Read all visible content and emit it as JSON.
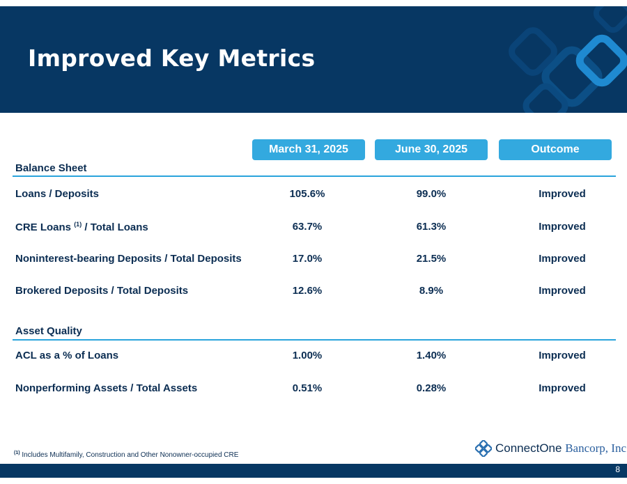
{
  "header": {
    "title": "Improved Key Metrics"
  },
  "columns": [
    "March 31, 2025",
    "June 30, 2025",
    "Outcome"
  ],
  "sections": [
    {
      "label": "Balance Sheet",
      "rows": [
        {
          "metric": "Loans / Deposits",
          "mar": "105.6%",
          "jun": "99.0%",
          "outcome": "Improved"
        },
        {
          "metric_pre": "CRE Loans ",
          "metric_sup": "(1)",
          "metric_post": " / Total Loans",
          "mar": "63.7%",
          "jun": "61.3%",
          "outcome": "Improved"
        },
        {
          "metric": "Noninterest-bearing Deposits / Total Deposits",
          "mar": "17.0%",
          "jun": "21.5%",
          "outcome": "Improved"
        },
        {
          "metric": "Brokered Deposits / Total Deposits",
          "mar": "12.6%",
          "jun": "8.9%",
          "outcome": "Improved"
        }
      ]
    },
    {
      "label": "Asset Quality",
      "rows": [
        {
          "metric": "ACL as a % of Loans",
          "mar": "1.00%",
          "jun": "1.40%",
          "outcome": "Improved"
        },
        {
          "metric": "Nonperforming Assets / Total Assets",
          "mar": "0.51%",
          "jun": "0.28%",
          "outcome": "Improved"
        }
      ]
    }
  ],
  "footnote": {
    "marker": "(1)",
    "text": " Includes Multifamily, Construction and Other Nonowner-occupied CRE"
  },
  "logo": {
    "part1": "ConnectOne ",
    "part2": "Bancorp, Inc."
  },
  "page_number": "8",
  "colors": {
    "navy": "#073763",
    "accent": "#33a9df",
    "text": "#0b2d52"
  }
}
